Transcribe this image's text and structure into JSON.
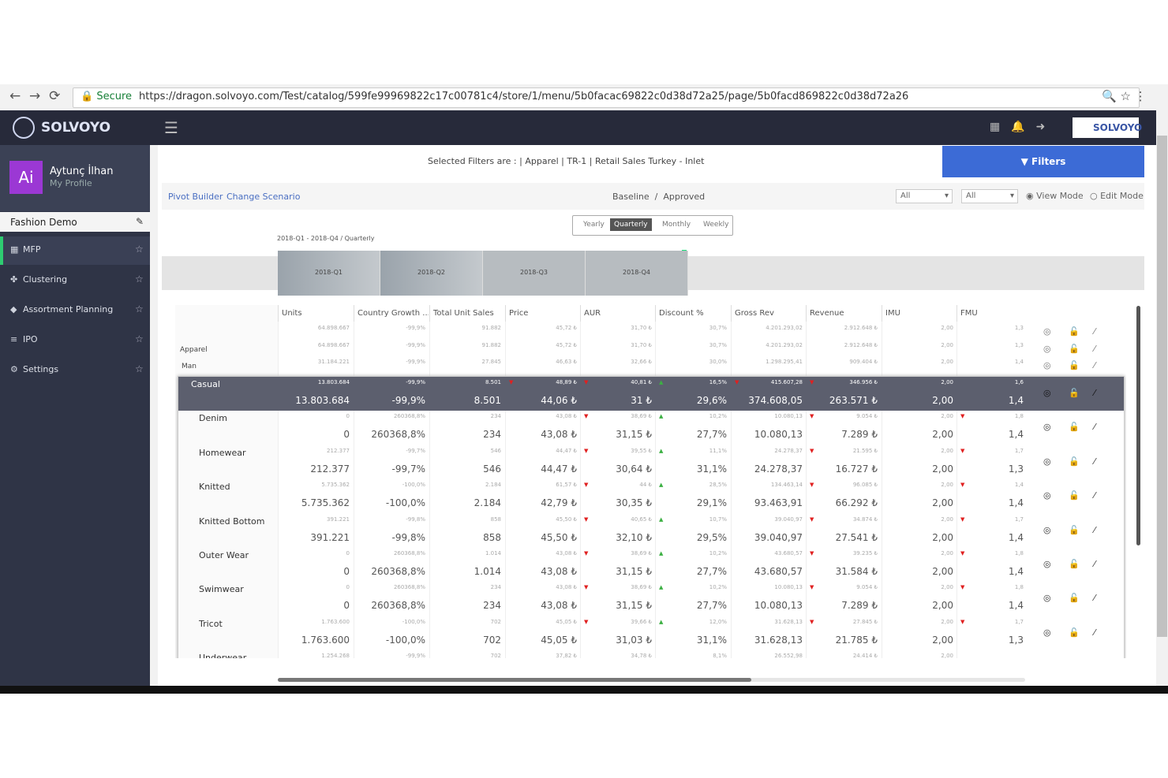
{
  "browser": {
    "secure": "Secure",
    "url": "https://dragon.solvoyo.com/Test/catalog/599fe99969822c17c00781c4/store/1/menu/5b0facac69822c0d38d72a25/page/5b0facd869822c0d38d72a26"
  },
  "app": {
    "logo": "SOLVOYO",
    "badge": "SOLVOYO"
  },
  "sidebar": {
    "initials": "Ai",
    "user": "Aytunç İlhan",
    "profile": "My Profile",
    "project": "Fashion Demo",
    "menu": [
      "MFP",
      "Clustering",
      "Assortment Planning",
      "IPO",
      "Settings"
    ]
  },
  "toolbar": {
    "filters_text": "Selected Filters are : | Apparel | TR-1 | Retail Sales Turkey - Inlet",
    "filters_button": "Filters",
    "links": [
      "Pivot Builder",
      "Change Scenario"
    ],
    "baseline": "Baseline",
    "separator": "/",
    "approved": "Approved",
    "selects": [
      "All",
      "All"
    ],
    "modes": [
      "View Mode",
      "Edit Mode"
    ]
  },
  "periods": {
    "tabs": [
      "Yearly",
      "Quarterly",
      "Monthly",
      "Weekly"
    ],
    "range": "2018-Q1 - 2018-Q4 / Quarterly",
    "quarters": [
      "2018-Q1",
      "2018-Q2",
      "2018-Q3",
      "2018-Q4"
    ]
  },
  "table": {
    "columns": [
      "Units",
      "Country Growth ...",
      "Total Unit Sales",
      "Price",
      "AUR",
      "Discount %",
      "Gross Rev",
      "Revenue",
      "IMU",
      "FMU"
    ],
    "top_rows": [
      {
        "label": null,
        "values": [
          "64.898.667",
          "-99,9%",
          "91.882",
          "45,72 ₺",
          "31,70 ₺",
          "30,7%",
          "4.201.293,02",
          "2.912.648 ₺",
          "2,00",
          "1,3"
        ]
      },
      {
        "label": "Apparel",
        "values": [
          "64.898.667",
          "-99,9%",
          "91.882",
          "45,72 ₺",
          "31,70 ₺",
          "30,7%",
          "4.201.293,02",
          "2.912.648 ₺",
          "2,00",
          "1,3"
        ]
      },
      {
        "label": "Man",
        "values": [
          "31.184.221",
          "-99,9%",
          "27.845",
          "46,63 ₺",
          "32,66 ₺",
          "30,0%",
          "1.298.295,41",
          "909.404 ₺",
          "2,00",
          "1,4"
        ]
      }
    ],
    "rows": [
      {
        "label": "Casual",
        "small": [
          "13.803.684",
          "-99,9%",
          "8.501",
          "48,89 ₺",
          "40,81 ₺",
          "16,5%",
          "415.607,28",
          "346.956 ₺",
          "2,00",
          "1,6"
        ],
        "big": [
          "13.803.684",
          "-99,9%",
          "8.501",
          "44,06 ₺",
          "31 ₺",
          "29,6%",
          "374.608,05",
          "263.571 ₺",
          "2,00",
          "1,4"
        ]
      },
      {
        "label": "Denim",
        "small": [
          "0",
          "260368,8%",
          "234",
          "43,08 ₺",
          "38,69 ₺",
          "10,2%",
          "10.080,13",
          "9.054 ₺",
          "2,00",
          "1,8"
        ],
        "big": [
          "0",
          "260368,8%",
          "234",
          "43,08 ₺",
          "31,15 ₺",
          "27,7%",
          "10.080,13",
          "7.289 ₺",
          "2,00",
          "1,4"
        ]
      },
      {
        "label": "Homewear",
        "small": [
          "212.377",
          "-99,7%",
          "546",
          "44,47 ₺",
          "39,55 ₺",
          "11,1%",
          "24.278,37",
          "21.595 ₺",
          "2,00",
          "1,7"
        ],
        "big": [
          "212.377",
          "-99,7%",
          "546",
          "44,47 ₺",
          "30,64 ₺",
          "31,1%",
          "24.278,37",
          "16.727 ₺",
          "2,00",
          "1,3"
        ]
      },
      {
        "label": "Knitted",
        "small": [
          "5.735.362",
          "-100,0%",
          "2.184",
          "61,57 ₺",
          "44 ₺",
          "28,5%",
          "134.463,14",
          "96.085 ₺",
          "2,00",
          "1,4"
        ],
        "big": [
          "5.735.362",
          "-100,0%",
          "2.184",
          "42,79 ₺",
          "30,35 ₺",
          "29,1%",
          "93.463,91",
          "66.292 ₺",
          "2,00",
          "1,4"
        ]
      },
      {
        "label": "Knitted Bottom",
        "small": [
          "391.221",
          "-99,8%",
          "858",
          "45,50 ₺",
          "40,65 ₺",
          "10,7%",
          "39.040,97",
          "34.874 ₺",
          "2,00",
          "1,7"
        ],
        "big": [
          "391.221",
          "-99,8%",
          "858",
          "45,50 ₺",
          "32,10 ₺",
          "29,5%",
          "39.040,97",
          "27.541 ₺",
          "2,00",
          "1,4"
        ]
      },
      {
        "label": "Outer Wear",
        "small": [
          "0",
          "260368,8%",
          "1.014",
          "43,08 ₺",
          "38,69 ₺",
          "10,2%",
          "43.680,57",
          "39.235 ₺",
          "2,00",
          "1,8"
        ],
        "big": [
          "0",
          "260368,8%",
          "1.014",
          "43,08 ₺",
          "31,15 ₺",
          "27,7%",
          "43.680,57",
          "31.584 ₺",
          "2,00",
          "1,4"
        ]
      },
      {
        "label": "Swimwear",
        "small": [
          "0",
          "260368,8%",
          "234",
          "43,08 ₺",
          "38,69 ₺",
          "10,2%",
          "10.080,13",
          "9.054 ₺",
          "2,00",
          "1,8"
        ],
        "big": [
          "0",
          "260368,8%",
          "234",
          "43,08 ₺",
          "31,15 ₺",
          "27,7%",
          "10.080,13",
          "7.289 ₺",
          "2,00",
          "1,4"
        ]
      },
      {
        "label": "Tricot",
        "small": [
          "1.763.600",
          "-100,0%",
          "702",
          "45,05 ₺",
          "39,66 ₺",
          "12,0%",
          "31.628,13",
          "27.845 ₺",
          "2,00",
          "1,7"
        ],
        "big": [
          "1.763.600",
          "-100,0%",
          "702",
          "45,05 ₺",
          "31,03 ₺",
          "31,1%",
          "31.628,13",
          "21.785 ₺",
          "2,00",
          "1,3"
        ]
      },
      {
        "label": "Underwear",
        "small": [
          "1.254.268",
          "-99,9%",
          "702",
          "37,82 ₺",
          "34,78 ₺",
          "8,1%",
          "26.552,98",
          "24.414 ₺",
          "2,00"
        ],
        "big": []
      }
    ]
  }
}
